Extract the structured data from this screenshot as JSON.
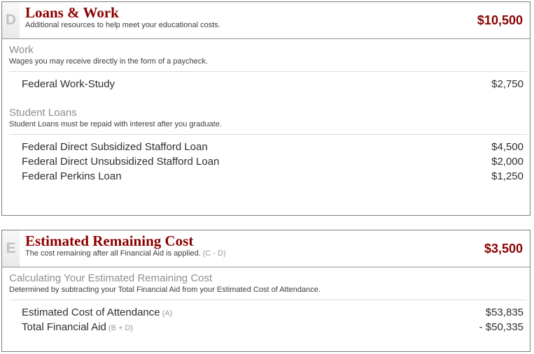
{
  "accent_color": "#8b0000",
  "panels": [
    {
      "badge": "D",
      "title": "Loans & Work",
      "subtitle": "Additional resources to help meet your educational costs.",
      "subtitle_note": "",
      "total": "$10,500",
      "sections": [
        {
          "heading": "Work",
          "description": "Wages you may receive directly in the form of a paycheck.",
          "rows": [
            {
              "label": "Federal Work-Study",
              "note": "",
              "amount": "$2,750"
            }
          ]
        },
        {
          "heading": "Student Loans",
          "description": "Student Loans must be repaid with interest after you graduate.",
          "rows": [
            {
              "label": "Federal Direct Subsidized Stafford Loan",
              "note": "",
              "amount": "$4,500"
            },
            {
              "label": "Federal Direct Unsubsidized Stafford Loan",
              "note": "",
              "amount": "$2,000"
            },
            {
              "label": "Federal Perkins Loan",
              "note": "",
              "amount": "$1,250"
            }
          ]
        }
      ]
    },
    {
      "badge": "E",
      "title": "Estimated Remaining Cost",
      "subtitle": "The cost remaining after all Financial Aid is applied.",
      "subtitle_note": "(C - D)",
      "total": "$3,500",
      "sections": [
        {
          "heading": "Calculating Your Estimated Remaining Cost",
          "description": "Determined by subtracting your Total Financial Aid from your Estimated Cost of Attendance.",
          "rows": [
            {
              "label": "Estimated Cost of Attendance",
              "note": "(A)",
              "amount": "$53,835"
            },
            {
              "label": "Total Financial Aid",
              "note": "(B + D)",
              "amount": "- $50,335"
            }
          ]
        }
      ]
    }
  ]
}
